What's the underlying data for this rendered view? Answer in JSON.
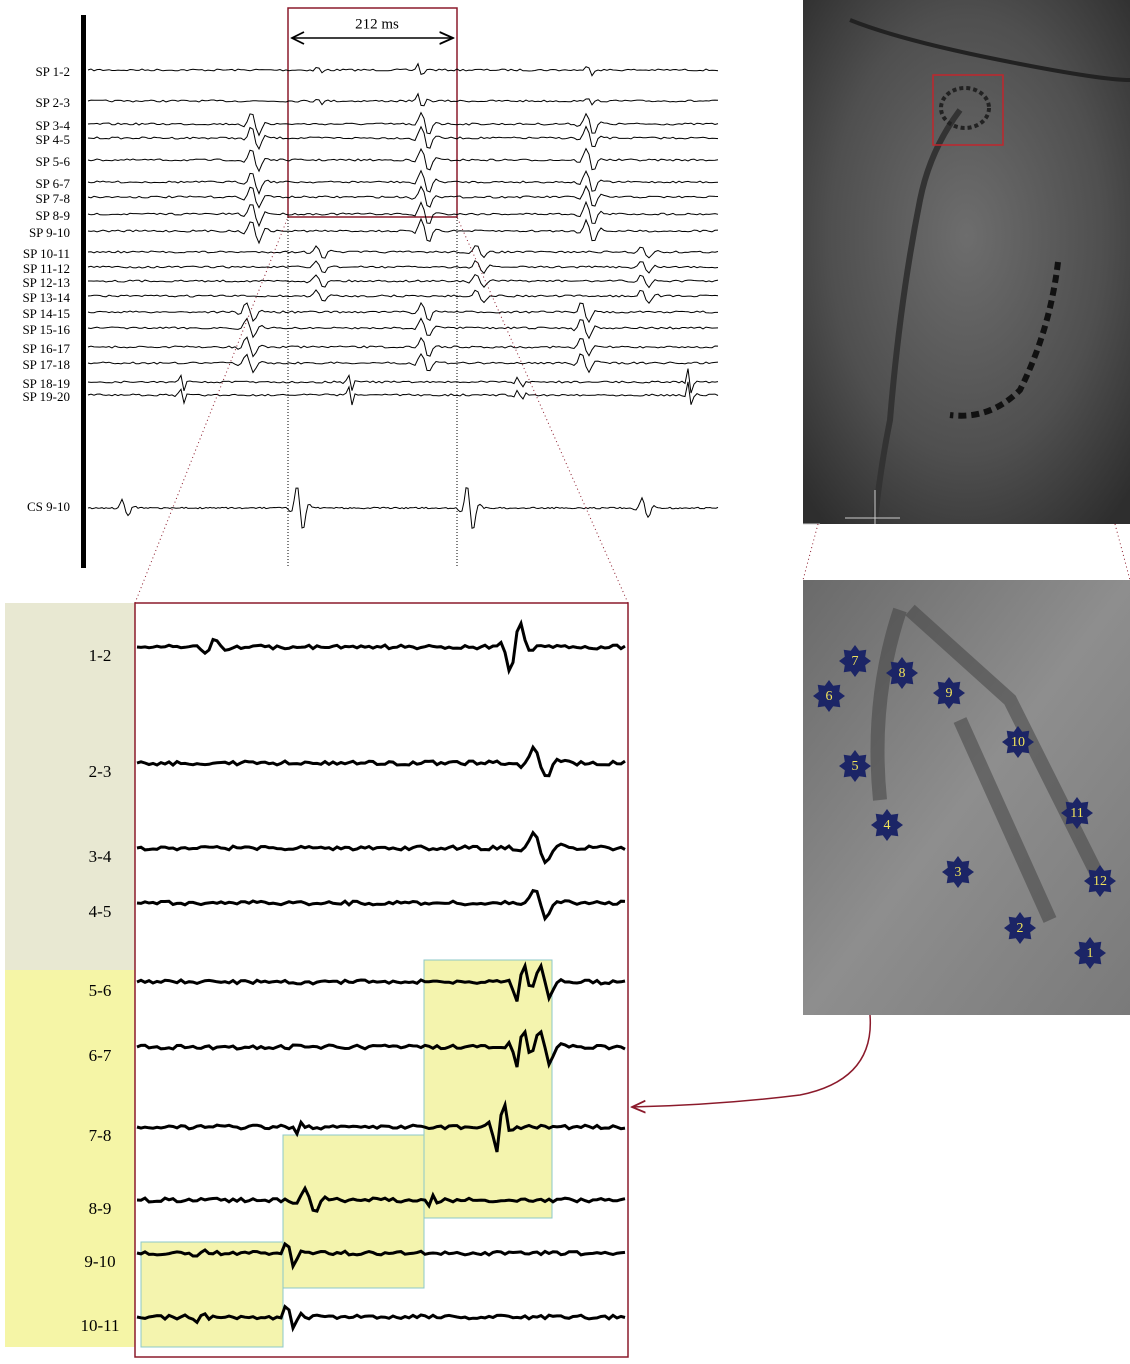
{
  "ecg": {
    "interval_label": "212 ms",
    "leads": [
      "SP 1-2",
      "SP 2-3",
      "SP 3-4",
      "SP 4-5",
      "SP 5-6",
      "SP 6-7",
      "SP 7-8",
      "SP 8-9",
      "SP 9-10",
      "SP 10-11",
      "SP 11-12",
      "SP 12-13",
      "SP 13-14",
      "SP 14-15",
      "SP 15-16",
      "SP 16-17",
      "SP 17-18",
      "SP 18-19",
      "SP 19-20"
    ],
    "cs_lead": "CS 9-10"
  },
  "zoom": {
    "leads": [
      "1-2",
      "2-3",
      "3-4",
      "4-5",
      "5-6",
      "6-7",
      "7-8",
      "8-9",
      "9-10",
      "10-11"
    ]
  },
  "electrodes": [
    "1",
    "2",
    "3",
    "4",
    "5",
    "6",
    "7",
    "8",
    "9",
    "10",
    "11",
    "12"
  ]
}
